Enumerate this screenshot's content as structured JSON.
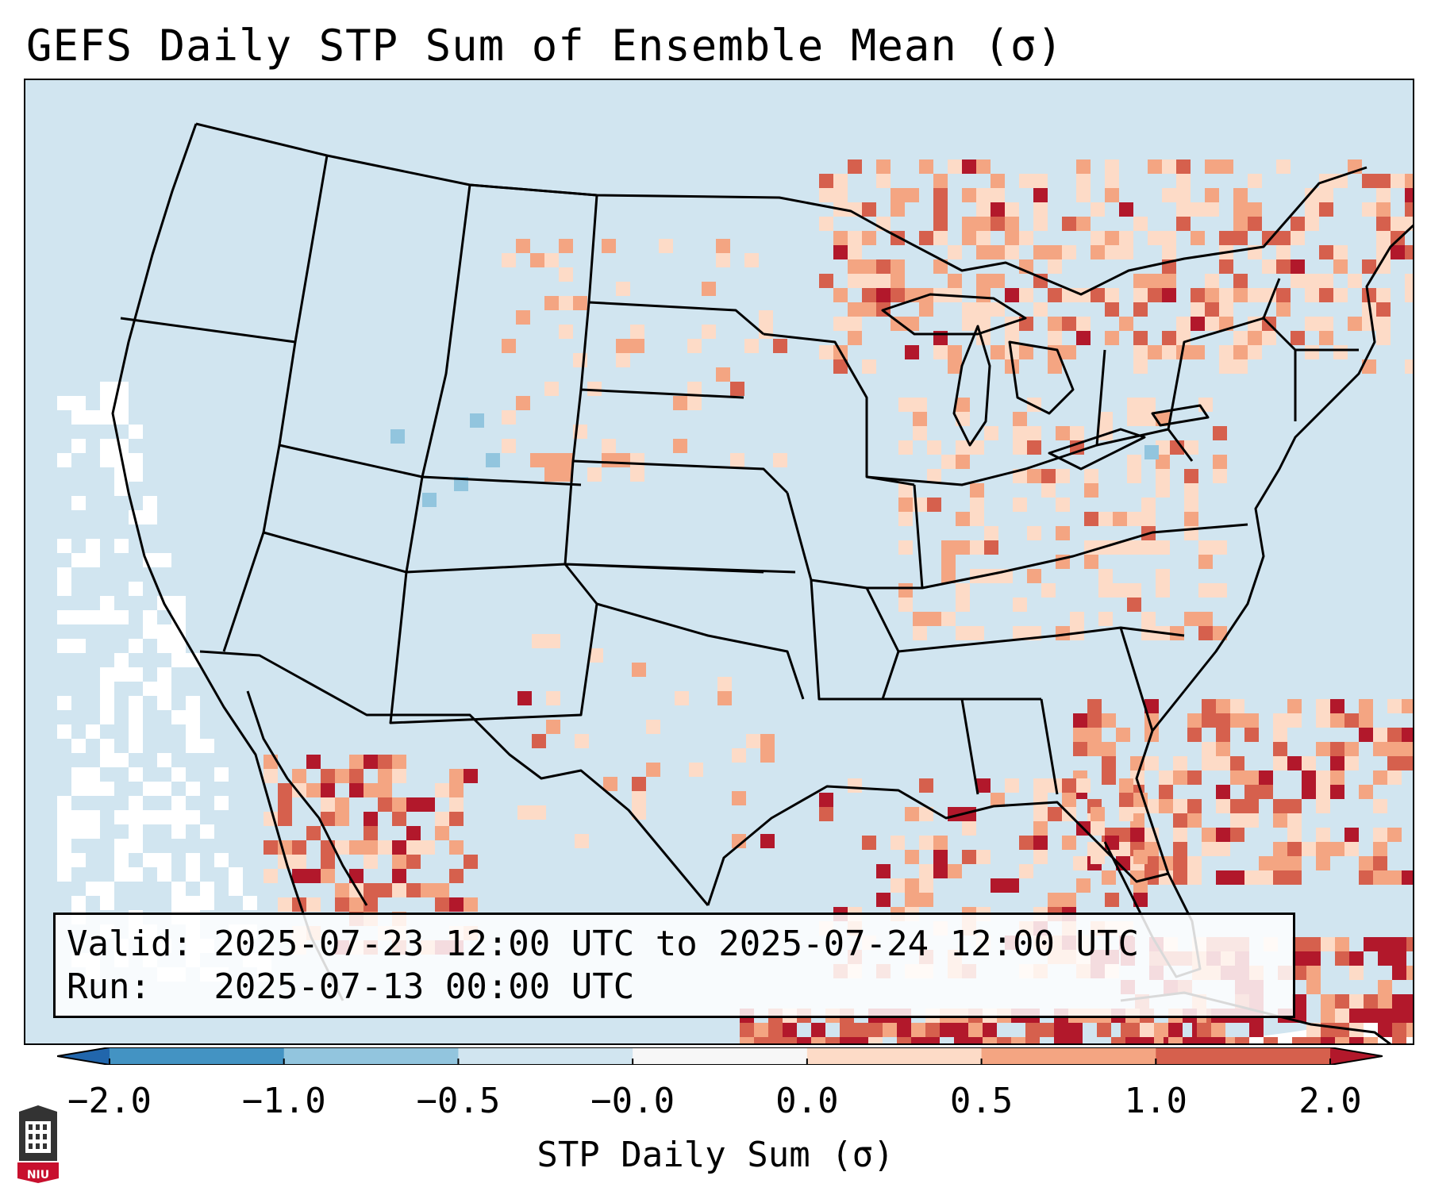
{
  "title": "GEFS Daily STP Sum of Ensemble Mean (σ)",
  "info": {
    "valid_line": "Valid: 2025-07-23 12:00 UTC to 2025-07-24 12:00 UTC",
    "run_line": "Run:   2025-07-13 00:00 UTC"
  },
  "colorbar": {
    "title": "STP Daily Sum (σ)",
    "tick_labels": [
      "−2.0",
      "−1.0",
      "−0.5",
      "−0.0",
      "0.0",
      "0.5",
      "1.0",
      "2.0"
    ],
    "bin_colors": [
      "#2166ac",
      "#4393c3",
      "#92c5de",
      "#d1e5f0",
      "#f7f7f7",
      "#fddbc7",
      "#f4a582",
      "#d6604d",
      "#b2182b"
    ],
    "extend": "both"
  },
  "logo": {
    "text": "NIU",
    "color": "#c8102e"
  },
  "colors": {
    "background_field": "#d1e5f0",
    "near_zero": "#ffffff",
    "light_positive": "#fddbc7",
    "moderate_positive": "#f4a582",
    "strong_positive": "#d6604d",
    "extreme_positive": "#b2182b",
    "light_negative": "#92c5de",
    "borders": "#000000"
  },
  "chart_data": {
    "type": "heatmap",
    "title": "GEFS Daily STP Sum of Ensemble Mean (σ)",
    "variable": "STP Daily Sum (σ)",
    "region": "Continental United States and surroundings",
    "color_scale": {
      "boundaries": [
        -2.0,
        -1.0,
        -0.5,
        -0.0,
        0.0,
        0.5,
        1.0,
        2.0
      ],
      "extend": "both"
    },
    "anomaly_regions": [
      {
        "name": "Southeast US coast / western Atlantic",
        "level": "extreme_positive"
      },
      {
        "name": "Cuba / Caribbean",
        "level": "extreme_positive"
      },
      {
        "name": "Great Lakes / Upper Michigan",
        "level": "strong_positive"
      },
      {
        "name": "Southern Ontario / Quebec",
        "level": "strong_positive"
      },
      {
        "name": "Northwest Mexico / Sierra Madre",
        "level": "strong_positive"
      },
      {
        "name": "Ohio Valley / Mid-Atlantic",
        "level": "light_positive"
      },
      {
        "name": "Northern Plains",
        "level": "moderate_positive"
      },
      {
        "name": "Pacific off California",
        "level": "near_zero"
      },
      {
        "name": "Colorado / Utah scattered",
        "level": "light_negative"
      }
    ]
  }
}
